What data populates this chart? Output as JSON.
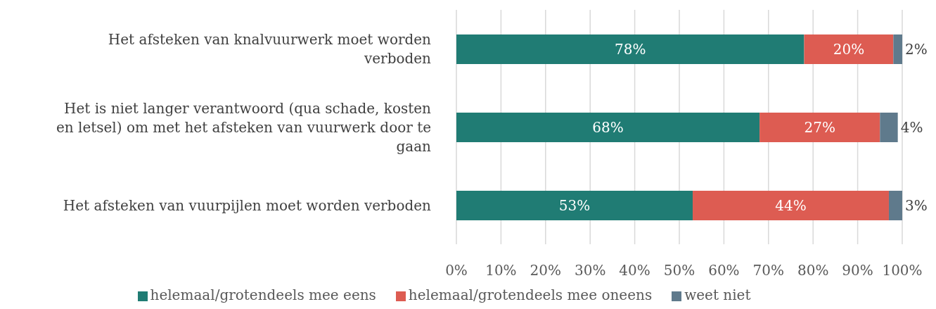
{
  "chart_data": {
    "type": "bar",
    "orientation": "horizontal",
    "stacked": true,
    "categories": [
      "Het afsteken van knalvuurwerk moet worden verboden",
      "Het is niet langer verantwoord (qua schade, kosten en letsel) om met het afsteken van vuurwerk door te gaan",
      "Het afsteken van vuurpijlen moet worden verboden"
    ],
    "series": [
      {
        "name": "helemaal/grotendeels mee eens",
        "color": "#207c74",
        "values": [
          78,
          68,
          53
        ],
        "value_labels": [
          "78%",
          "68%",
          "53%"
        ]
      },
      {
        "name": "helemaal/grotendeels mee oneens",
        "color": "#dd5c52",
        "values": [
          20,
          27,
          44
        ],
        "value_labels": [
          "20%",
          "27%",
          "44%"
        ]
      },
      {
        "name": "weet niet",
        "color": "#5f7a8c",
        "values": [
          2,
          4,
          3
        ],
        "value_labels": [
          "2%",
          "4%",
          "3%"
        ]
      }
    ],
    "xlim": [
      0,
      100
    ],
    "xticks": [
      {
        "value": 0,
        "label": "0%"
      },
      {
        "value": 10,
        "label": "10%"
      },
      {
        "value": 20,
        "label": "20%"
      },
      {
        "value": 30,
        "label": "30%"
      },
      {
        "value": 40,
        "label": "40%"
      },
      {
        "value": 50,
        "label": "50%"
      },
      {
        "value": 60,
        "label": "60%"
      },
      {
        "value": 70,
        "label": "70%"
      },
      {
        "value": 80,
        "label": "80%"
      },
      {
        "value": 90,
        "label": "90%"
      },
      {
        "value": 100,
        "label": "100%"
      }
    ],
    "grid": "x",
    "legend": "bottom"
  }
}
